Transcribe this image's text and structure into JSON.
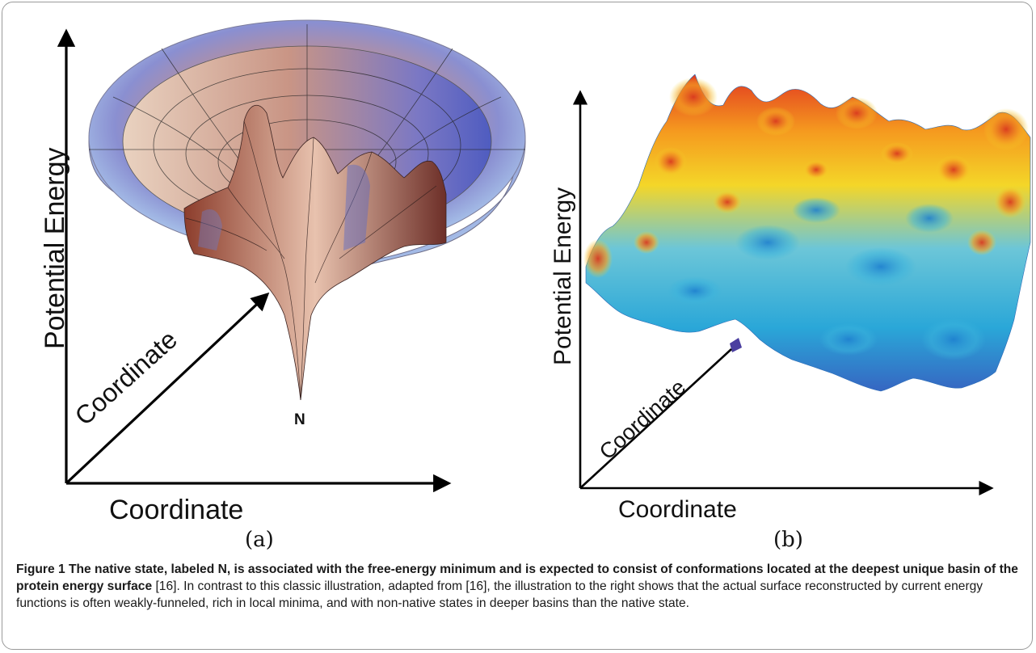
{
  "figure": {
    "panel_a": {
      "y_axis_label": "Potential Energy",
      "depth_axis_label": "Coordinate",
      "x_axis_label": "Coordinate",
      "native_label": "N",
      "sublabel": "(a)"
    },
    "panel_b": {
      "y_axis_label": "Potential Energy",
      "depth_axis_label": "Coordinate",
      "x_axis_label": "Coordinate",
      "sublabel": "(b)"
    }
  },
  "caption": {
    "bold": "Figure 1 The native state, labeled N, is associated with the free-energy minimum and is expected to consist of conformations located at the deepest unique basin of the protein energy surface",
    "ref1": " [16]. In contrast to this classic illustration, adapted from [16], the illustration to the right shows that the actual surface reconstructed by current energy functions is often weakly-funneled, rich in local minima, and with non-native states in deeper basins than the native state."
  },
  "colors": {
    "funnel_rim": "#a9c1e6",
    "funnel_inner": "#c59a93",
    "landscape_high": "#e23a20",
    "landscape_mid": "#f4d628",
    "landscape_low": "#2aa7d8"
  }
}
